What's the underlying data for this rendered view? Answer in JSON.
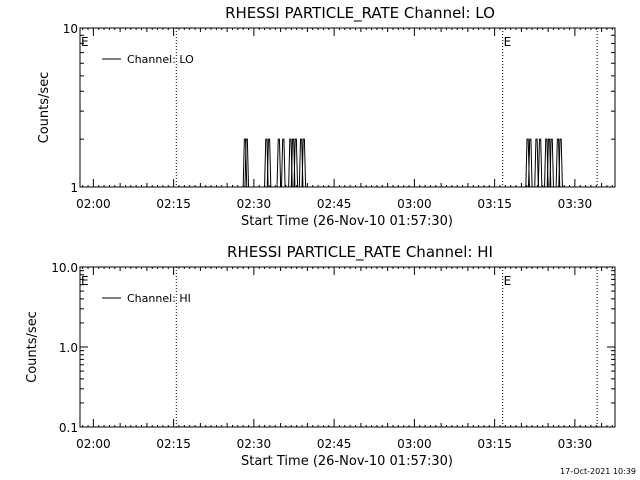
{
  "chart_data": [
    {
      "type": "line",
      "title": "RHESSI PARTICLE_RATE Channel: LO",
      "xlabel": "Start Time (26-Nov-10 01:57:30)",
      "ylabel": "Counts/sec",
      "y_scale": "log",
      "ylim": [
        1,
        10
      ],
      "y_ticks": [
        "1",
        "10"
      ],
      "x_ticks": [
        "02:00",
        "02:15",
        "02:30",
        "02:45",
        "03:00",
        "03:15",
        "03:30"
      ],
      "legend": "top-left",
      "series": [
        {
          "name": "Channel: LO",
          "spikes": [
            "02:28:20",
            "02:28:40",
            "02:32:20",
            "02:32:50",
            "02:34:40",
            "02:35:30",
            "02:36:50",
            "02:37:20",
            "02:37:50",
            "02:38:50",
            "02:39:20",
            "03:21:10",
            "03:21:40",
            "03:22:50",
            "03:23:30",
            "03:24:40",
            "03:25:10",
            "03:25:40",
            "03:26:50",
            "03:27:20"
          ],
          "spike_value": 2,
          "base_value": 1
        }
      ],
      "markers": [
        {
          "time": "01:57:30",
          "label": "E"
        },
        {
          "time": "02:15:30",
          "label": ""
        },
        {
          "time": "03:16:30",
          "label": "E"
        },
        {
          "time": "03:34:10",
          "label": ""
        }
      ]
    },
    {
      "type": "line",
      "title": "RHESSI PARTICLE_RATE Channel: HI",
      "xlabel": "Start Time (26-Nov-10 01:57:30)",
      "ylabel": "Counts/sec",
      "y_scale": "log",
      "ylim": [
        0.1,
        10
      ],
      "y_ticks": [
        "0.1",
        "1.0",
        "10.0"
      ],
      "x_ticks": [
        "02:00",
        "02:15",
        "02:30",
        "02:45",
        "03:00",
        "03:15",
        "03:30"
      ],
      "legend": "top-left",
      "series": [
        {
          "name": "Channel: HI",
          "spikes": []
        }
      ],
      "markers": [
        {
          "time": "01:57:30",
          "label": "E"
        },
        {
          "time": "02:15:30",
          "label": ""
        },
        {
          "time": "03:16:30",
          "label": "E"
        },
        {
          "time": "03:34:10",
          "label": ""
        }
      ]
    }
  ],
  "footer": {
    "timestamp": "17-Oct-2021 10:39"
  }
}
